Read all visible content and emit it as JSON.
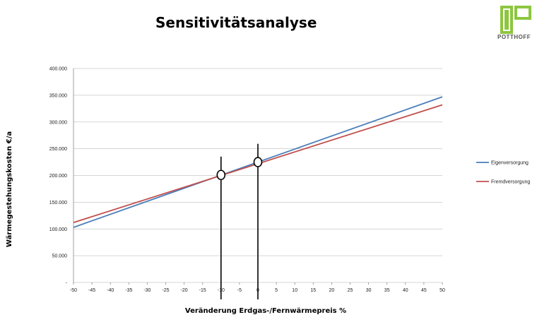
{
  "header": {
    "title": "Sensitivitätsanalyse",
    "logo_text": "POTTHOFF",
    "logo_color": "#8cc63f"
  },
  "chart_data": {
    "type": "line",
    "title": "Sensitivitätsanalyse",
    "xlabel": "Veränderung Erdgas-/Fernwärmepreis %",
    "ylabel": "Wärmegestehungskosten     €/a",
    "xlim": [
      -50,
      50
    ],
    "ylim": [
      0,
      400000
    ],
    "x_ticks": [
      "-50",
      "-45",
      "-40",
      "-35",
      "-30",
      "-25",
      "-20",
      "-15",
      "-10",
      "-5",
      "0",
      "5",
      "10",
      "15",
      "20",
      "25",
      "30",
      "35",
      "40",
      "45",
      "50"
    ],
    "y_ticks": [
      "-",
      "50.000",
      "100.000",
      "150.000",
      "200.000",
      "250.000",
      "300.000",
      "350.000",
      "400.000"
    ],
    "grid": "horizontal",
    "legend_position": "right",
    "series": [
      {
        "name": "Eigenversorgung",
        "color": "#4a7eba",
        "x": [
          -50,
          50
        ],
        "y": [
          103000,
          347000
        ]
      },
      {
        "name": "Fremdversorgung",
        "color": "#c0504d",
        "x": [
          -50,
          50
        ],
        "y": [
          112000,
          332000
        ]
      }
    ],
    "markers": [
      {
        "x": -10,
        "y": 201000
      },
      {
        "x": 0,
        "y": 225000
      }
    ]
  }
}
